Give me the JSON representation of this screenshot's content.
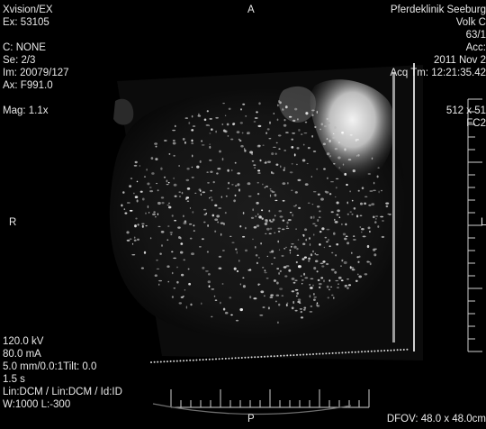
{
  "orientation": {
    "top": "A",
    "bottom": "P",
    "left": "R",
    "right": "L"
  },
  "top_left": [
    "Xvision/EX",
    "Ex: 53105",
    "",
    "C: NONE",
    "Se:  2/3",
    "Im:  20079/127",
    "Ax: F991.0",
    "",
    "Mag: 1.1x"
  ],
  "top_right": [
    "Pferdeklinik Seeburg",
    "Volk C",
    "63/1",
    "Acc:",
    "2011 Nov 2",
    "Acq Tm: 12:21:35.42",
    "",
    "",
    "512 x 51",
    "FC2"
  ],
  "bottom_left": [
    "120.0 kV",
    "80.0 mA",
    "5.0 mm/0.0:1Tilt: 0.0",
    "1.5 s",
    "Lin:DCM / Lin:DCM / Id:ID",
    "W:1000  L:-300"
  ],
  "bottom_right": {
    "dfov": "DFOV: 48.0 x 48.0cm"
  },
  "colors": {
    "background": "#000000",
    "overlay_text": "#e8e8e8"
  }
}
